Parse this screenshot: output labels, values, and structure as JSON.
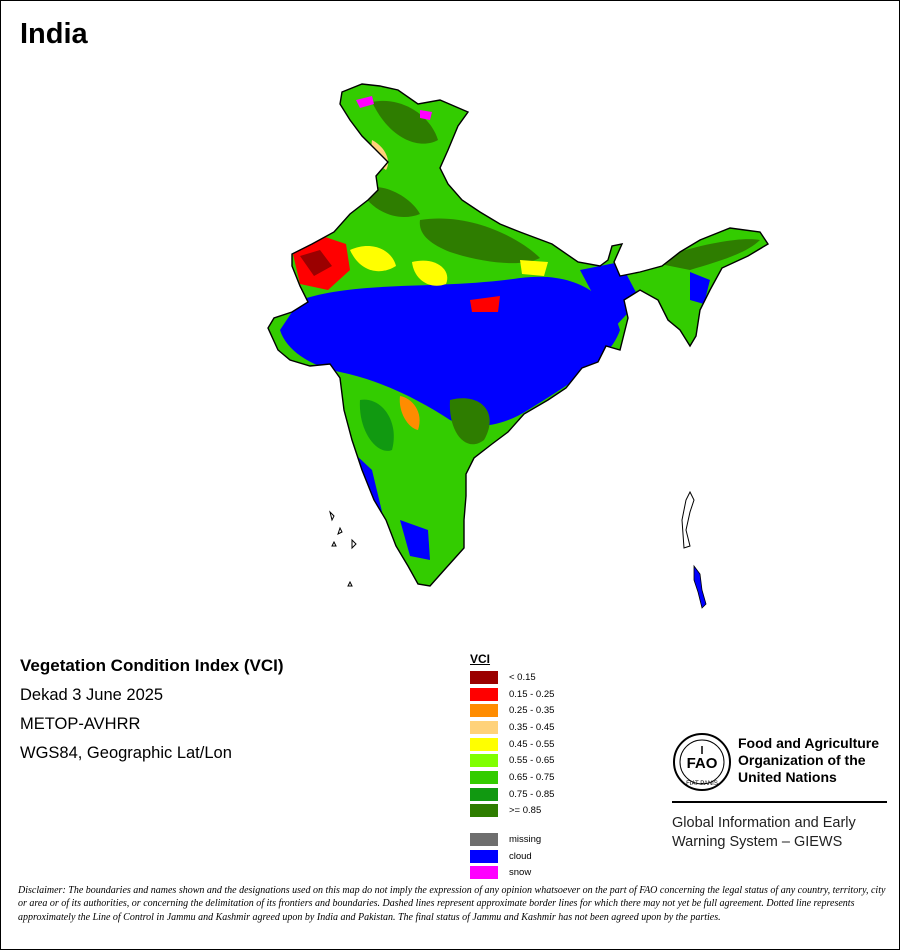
{
  "map": {
    "country": "India",
    "index_title": "Vegetation Condition Index (VCI)",
    "period": "Dekad 3 June 2025",
    "sensor": "METOP-AVHRR",
    "projection": "WGS84, Geographic Lat/Lon"
  },
  "legend": {
    "title": "VCI",
    "classes": [
      {
        "label": "< 0.15",
        "color": "#9b0000"
      },
      {
        "label": "0.15 - 0.25",
        "color": "#ff0000"
      },
      {
        "label": "0.25 - 0.35",
        "color": "#ff8c00"
      },
      {
        "label": "0.35 - 0.45",
        "color": "#ffd27a"
      },
      {
        "label": "0.45 - 0.55",
        "color": "#ffff00"
      },
      {
        "label": "0.55 - 0.65",
        "color": "#80ff00"
      },
      {
        "label": "0.65 - 0.75",
        "color": "#33cc00"
      },
      {
        "label": "0.75 - 0.85",
        "color": "#119911"
      },
      {
        "label": ">= 0.85",
        "color": "#2e7d00"
      }
    ],
    "extra": [
      {
        "label": "missing",
        "color": "#6e6e6e"
      },
      {
        "label": "cloud",
        "color": "#0000ff"
      },
      {
        "label": "snow",
        "color": "#ff00ff"
      }
    ]
  },
  "organization": {
    "name_line1": "Food and Agriculture",
    "name_line2": "Organization of the",
    "name_line3": "United Nations",
    "emblem_text": "FAO",
    "emblem_motto": "FIAT PANIS",
    "giews_line1": "Global Information and Early",
    "giews_line2": "Warning System – GIEWS"
  },
  "disclaimer": "Disclaimer: The boundaries and names shown and the designations used on this map do not imply the expression of any opinion whatsoever on the part of FAO concerning the legal status of any country, territory, city or area or of its authorities, or concerning the delimitation of its frontiers and boundaries. Dashed lines represent approximate border lines for which there may not yet be full agreement. Dotted line represents approximately the Line of Control in Jammu and Kashmir agreed upon by India and Pakistan. The final status of Jammu and Kashmir has not been agreed upon by the parties."
}
